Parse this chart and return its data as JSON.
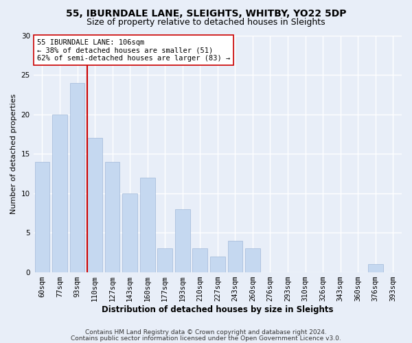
{
  "title1": "55, IBURNDALE LANE, SLEIGHTS, WHITBY, YO22 5DP",
  "title2": "Size of property relative to detached houses in Sleights",
  "xlabel": "Distribution of detached houses by size in Sleights",
  "ylabel": "Number of detached properties",
  "categories": [
    "60sqm",
    "77sqm",
    "93sqm",
    "110sqm",
    "127sqm",
    "143sqm",
    "160sqm",
    "177sqm",
    "193sqm",
    "210sqm",
    "227sqm",
    "243sqm",
    "260sqm",
    "276sqm",
    "293sqm",
    "310sqm",
    "326sqm",
    "343sqm",
    "360sqm",
    "376sqm",
    "393sqm"
  ],
  "values": [
    14,
    20,
    24,
    17,
    14,
    10,
    12,
    3,
    8,
    3,
    2,
    4,
    3,
    0,
    0,
    0,
    0,
    0,
    0,
    1,
    0
  ],
  "bar_color": "#c5d8f0",
  "bar_edgecolor": "#a0b8d8",
  "vline_bin_index": 3,
  "vline_color": "#cc0000",
  "annotation_text": "55 IBURNDALE LANE: 106sqm\n← 38% of detached houses are smaller (51)\n62% of semi-detached houses are larger (83) →",
  "annotation_box_edgecolor": "#cc0000",
  "annotation_box_facecolor": "#ffffff",
  "ylim": [
    0,
    30
  ],
  "yticks": [
    0,
    5,
    10,
    15,
    20,
    25,
    30
  ],
  "footer1": "Contains HM Land Registry data © Crown copyright and database right 2024.",
  "footer2": "Contains public sector information licensed under the Open Government Licence v3.0.",
  "background_color": "#e8eef8",
  "grid_color": "#ffffff",
  "title1_fontsize": 10,
  "title2_fontsize": 9,
  "xlabel_fontsize": 8.5,
  "ylabel_fontsize": 8,
  "tick_fontsize": 7.5,
  "annotation_fontsize": 7.5,
  "footer_fontsize": 6.5
}
